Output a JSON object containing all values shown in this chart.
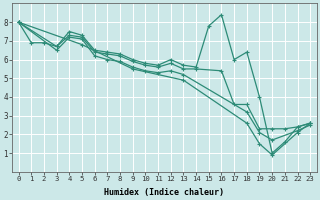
{
  "lines": [
    {
      "x": [
        0,
        1,
        2,
        3,
        4,
        5,
        6,
        7,
        8,
        9,
        10,
        11,
        12,
        13,
        14,
        15,
        16,
        17,
        18,
        19,
        20,
        21,
        22,
        23
      ],
      "y": [
        8.0,
        6.9,
        6.9,
        6.7,
        7.5,
        7.3,
        6.5,
        6.4,
        6.3,
        6.0,
        5.8,
        5.7,
        6.0,
        5.7,
        5.6,
        7.8,
        8.4,
        6.0,
        6.4,
        4.0,
        1.0,
        1.6,
        2.4,
        2.6
      ]
    },
    {
      "x": [
        0,
        3,
        4,
        5,
        6,
        7,
        8,
        9,
        10,
        11,
        12,
        13,
        14,
        16,
        17,
        18,
        19,
        20,
        21,
        22,
        23
      ],
      "y": [
        8.0,
        6.7,
        7.3,
        7.2,
        6.4,
        6.3,
        6.2,
        5.9,
        5.7,
        5.6,
        5.8,
        5.5,
        5.5,
        5.4,
        3.6,
        3.6,
        2.3,
        2.3,
        2.3,
        2.4,
        2.6
      ]
    },
    {
      "x": [
        0,
        3,
        4,
        5,
        6,
        7,
        8,
        9,
        10,
        11,
        12,
        13,
        18,
        19,
        20,
        22,
        23
      ],
      "y": [
        8.0,
        6.5,
        7.2,
        7.1,
        6.2,
        6.0,
        5.9,
        5.6,
        5.4,
        5.3,
        5.4,
        5.2,
        3.2,
        2.1,
        1.7,
        2.2,
        2.5
      ]
    },
    {
      "x": [
        0,
        5,
        9,
        13,
        18,
        19,
        20,
        22,
        23
      ],
      "y": [
        8.0,
        6.8,
        5.5,
        4.9,
        2.6,
        1.5,
        0.9,
        2.1,
        2.6
      ]
    }
  ],
  "color": "#2d8b77",
  "bg_color": "#cce8e8",
  "grid_color": "#ffffff",
  "xlabel": "Humidex (Indice chaleur)",
  "xlim": [
    -0.5,
    23.5
  ],
  "ylim": [
    0,
    9
  ],
  "xticks": [
    0,
    1,
    2,
    3,
    4,
    5,
    6,
    7,
    8,
    9,
    10,
    11,
    12,
    13,
    14,
    15,
    16,
    17,
    18,
    19,
    20,
    21,
    22,
    23
  ],
  "yticks": [
    1,
    2,
    3,
    4,
    5,
    6,
    7,
    8
  ],
  "markersize": 2.5,
  "linewidth": 0.9,
  "tick_fontsize": 5.2,
  "xlabel_fontsize": 6.0
}
